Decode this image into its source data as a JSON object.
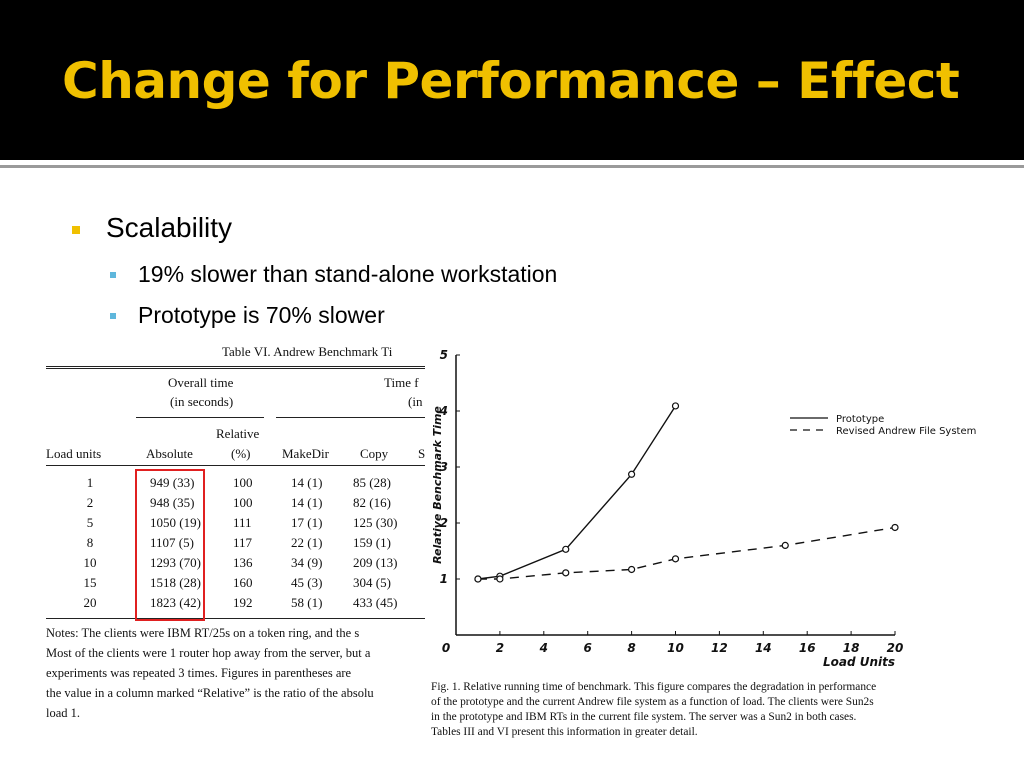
{
  "slide": {
    "title": "Change for Performance – Effect",
    "bullets": [
      {
        "text": "Scalability",
        "sub": [
          "19% slower than stand-alone workstation",
          "Prototype is 70% slower"
        ]
      }
    ],
    "colors": {
      "title": "#f0c000",
      "bullet_l1": "#f0c000",
      "bullet_l2": "#5fb7dc",
      "highlight_box": "#e02020"
    }
  },
  "table": {
    "caption": "Table VI.   Andrew Benchmark Ti",
    "group_overall": "Overall time",
    "group_overall_sub": "(in seconds)",
    "group_time": "Time f",
    "group_time_sub": "(in",
    "col_load": "Load units",
    "col_absolute": "Absolute",
    "col_relative": "Relative",
    "col_relative_sub": "(%)",
    "col_makedir": "MakeDir",
    "col_copy": "Copy",
    "col_cut": "S",
    "rows": [
      {
        "load": "1",
        "absolute": "949 (33)",
        "relative": "100",
        "makedir": "14 (1)",
        "copy": "85 (28)"
      },
      {
        "load": "2",
        "absolute": "948 (35)",
        "relative": "100",
        "makedir": "14 (1)",
        "copy": "82 (16)"
      },
      {
        "load": "5",
        "absolute": "1050 (19)",
        "relative": "111",
        "makedir": "17 (1)",
        "copy": "125 (30)"
      },
      {
        "load": "8",
        "absolute": "1107 (5)",
        "relative": "117",
        "makedir": "22 (1)",
        "copy": "159 (1)"
      },
      {
        "load": "10",
        "absolute": "1293 (70)",
        "relative": "136",
        "makedir": "34 (9)",
        "copy": "209 (13)"
      },
      {
        "load": "15",
        "absolute": "1518 (28)",
        "relative": "160",
        "makedir": "45 (3)",
        "copy": "304 (5)"
      },
      {
        "load": "20",
        "absolute": "1823 (42)",
        "relative": "192",
        "makedir": "58 (1)",
        "copy": "433 (45)"
      }
    ],
    "notes": [
      "Notes:   The clients were IBM RT/25s on a token ring, and the s",
      "Most of the clients were 1 router hop away from the server, but a",
      "experiments was repeated 3 times. Figures in parentheses are",
      "the value in a column marked “Relative” is the ratio of the absolu",
      "load 1."
    ]
  },
  "figure": {
    "caption_lines": [
      "Fig. 1.    Relative running time of benchmark. This figure compares the degradation in performance",
      "of the prototype and the current Andrew file system as a function of load. The clients were Sun2s",
      "in the prototype and IBM RTs in the current file system. The server was a Sun2 in both cases.",
      "Tables III and VI present this information in greater detail."
    ]
  },
  "chart_data": {
    "type": "line",
    "title": "",
    "xlabel": "Load Units",
    "ylabel": "Relative Benchmark Time",
    "xlim": [
      0,
      20
    ],
    "ylim": [
      0,
      5
    ],
    "xticks": [
      "0",
      "2",
      "4",
      "6",
      "8",
      "10",
      "12",
      "14",
      "16",
      "18",
      "20"
    ],
    "yticks": [
      "1",
      "2",
      "3",
      "4",
      "5"
    ],
    "legend_position": "top-right",
    "grid": false,
    "series": [
      {
        "name": "Prototype",
        "style": "solid",
        "x": [
          1,
          2,
          5,
          8,
          10
        ],
        "y": [
          1.0,
          1.05,
          1.53,
          2.87,
          4.09
        ]
      },
      {
        "name": "Revised Andrew File System",
        "style": "dashed",
        "x": [
          1,
          2,
          5,
          8,
          10,
          15,
          20
        ],
        "y": [
          1.0,
          1.0,
          1.11,
          1.17,
          1.36,
          1.6,
          1.92
        ]
      }
    ]
  }
}
